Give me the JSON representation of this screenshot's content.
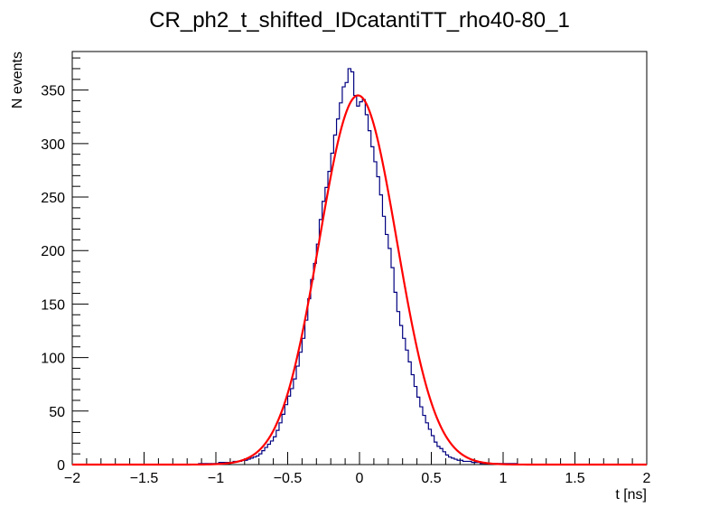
{
  "chart_data": {
    "type": "line",
    "title": "CR_ph2_t_shifted_IDcatantiTT_rho40-80_1",
    "xlabel": "t [ns]",
    "ylabel": "N events",
    "xlim": [
      -2,
      2
    ],
    "ylim": [
      0,
      386
    ],
    "grid": false,
    "x_ticks": [
      "-2",
      "-1.5",
      "-1",
      "-0.5",
      "0",
      "0.5",
      "1",
      "1.5",
      "2"
    ],
    "y_ticks": [
      "0",
      "50",
      "100",
      "150",
      "200",
      "250",
      "300",
      "350"
    ],
    "series": [
      {
        "kind": "histogram",
        "color": "#000080",
        "bin_width": 0.02,
        "x": [
          -0.9,
          -0.8,
          -0.7,
          -0.66,
          -0.62,
          -0.58,
          -0.54,
          -0.5,
          -0.46,
          -0.42,
          -0.38,
          -0.34,
          -0.3,
          -0.26,
          -0.22,
          -0.18,
          -0.14,
          -0.1,
          -0.08,
          -0.06,
          -0.04,
          -0.02,
          0.0,
          0.02,
          0.04,
          0.06,
          0.08,
          0.1,
          0.14,
          0.18,
          0.22,
          0.26,
          0.3,
          0.34,
          0.38,
          0.42,
          0.46,
          0.5,
          0.54,
          0.58,
          0.62,
          0.66,
          0.7,
          0.8,
          0.9,
          1.0,
          1.2
        ],
        "y": [
          2,
          4,
          8,
          14,
          20,
          28,
          42,
          60,
          74,
          98,
          125,
          165,
          195,
          240,
          265,
          300,
          330,
          360,
          355,
          385,
          350,
          340,
          330,
          348,
          335,
          320,
          305,
          290,
          262,
          222,
          196,
          150,
          124,
          102,
          78,
          58,
          42,
          30,
          18,
          14,
          8,
          6,
          4,
          2,
          1,
          1,
          0
        ]
      },
      {
        "kind": "gaussian-fit",
        "color": "#ff0000",
        "amplitude": 345,
        "mean": -0.01,
        "sigma": 0.27,
        "x_range": [
          -2,
          2
        ]
      }
    ]
  }
}
